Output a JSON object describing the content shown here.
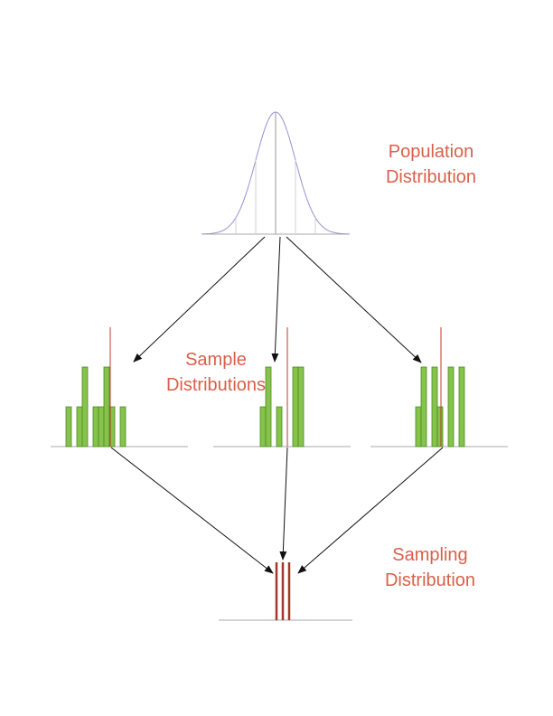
{
  "labels": {
    "population": [
      "Population",
      "Distribution"
    ],
    "samples": [
      "Sample",
      "Distributions"
    ],
    "sampling": [
      "Sampling",
      "Distribution"
    ]
  },
  "colors": {
    "label": "#d9604a",
    "curve": "#9b8fd6",
    "bar_fill": "#86c34a",
    "bar_edge": "#4d8a24",
    "mean_line": "#c0392b",
    "sampling_bar": "#a0392b",
    "baseline": "#a8a8a8",
    "arrow": "#111111"
  },
  "population_distribution": {
    "type": "normal-curve"
  },
  "sample_distributions": [
    {
      "bar_heights": [
        1,
        0,
        1,
        2,
        0,
        1,
        1,
        2,
        1,
        0,
        1
      ],
      "mean_level": 0.48
    },
    {
      "bar_heights": [
        1,
        2,
        0,
        1,
        0,
        0,
        2,
        2
      ],
      "mean_level": 0.62
    },
    {
      "bar_heights": [
        1,
        2,
        0,
        2,
        1,
        0,
        2,
        0,
        2
      ],
      "mean_level": 0.45
    }
  ],
  "sampling_distribution": {
    "bar_count": 3
  }
}
